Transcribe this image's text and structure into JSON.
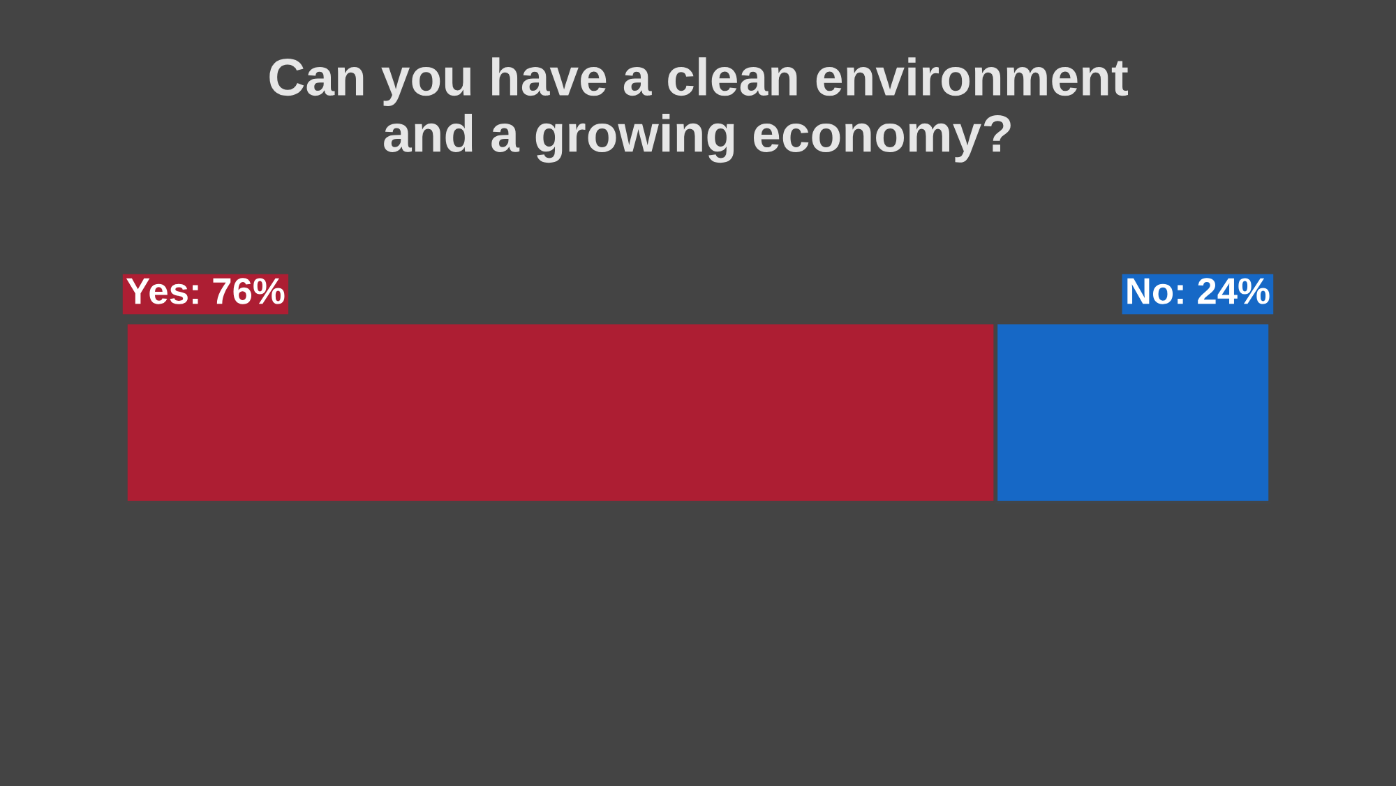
{
  "chart_data": {
    "type": "bar",
    "orientation": "horizontal",
    "stacked": true,
    "title": "Can you have a clean environment\nand a growing economy?",
    "categories": [
      null
    ],
    "series": [
      {
        "color": "#ad1e33",
        "values": [
          76
        ],
        "value_labels": [
          "Yes: 76%"
        ]
      },
      {
        "color": "#1668c6",
        "values": [
          24
        ],
        "value_labels": [
          "No: 24%"
        ]
      }
    ],
    "xlim": [
      0,
      100
    ]
  }
}
